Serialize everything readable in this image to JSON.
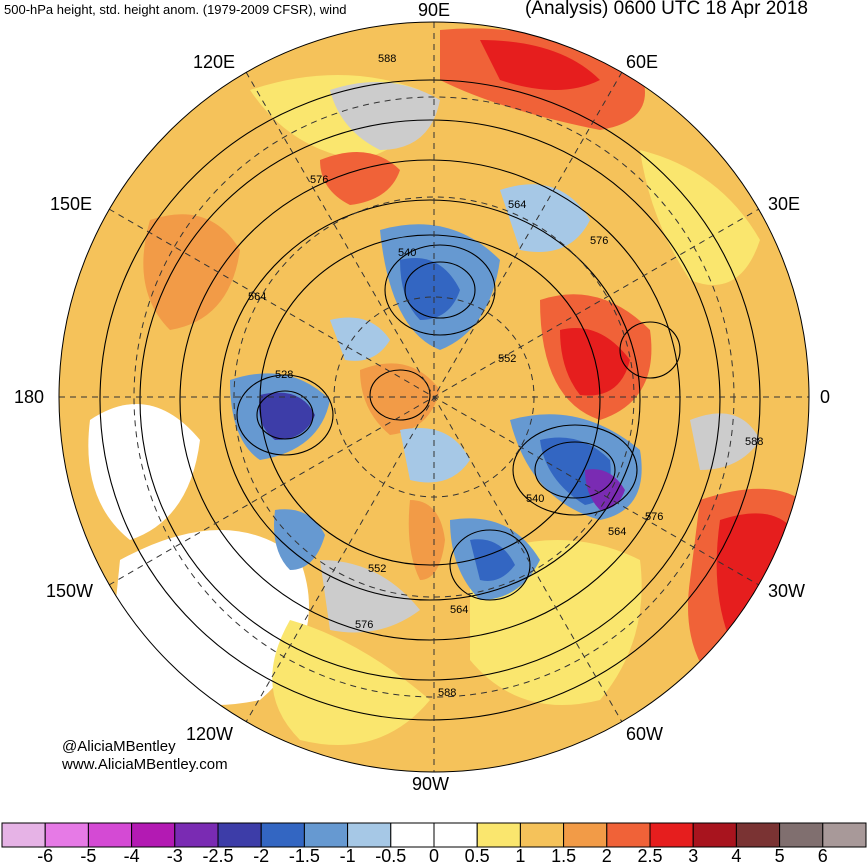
{
  "header": {
    "left_title": "500-hPa height, std. height anom. (1979-2009 CFSR), wind",
    "right_title": "(Analysis) 0600 UTC 18 Apr 2018"
  },
  "credits": {
    "twitter": "@AliciaMBentley",
    "website": "www.AliciaMBentley.com"
  },
  "longitude_labels": {
    "e90": "90E",
    "e60": "60E",
    "e30": "30E",
    "zero": "0",
    "w30": "30W",
    "w60": "60W",
    "w90": "90W",
    "w120": "120W",
    "w150": "150W",
    "d180": "180",
    "e150": "150E",
    "e120": "120E"
  },
  "contour_labels": [
    "588",
    "576",
    "564",
    "540",
    "552",
    "528",
    "540",
    "564",
    "576",
    "588",
    "552",
    "564",
    "576",
    "588",
    "564",
    "576"
  ],
  "colorbar": {
    "colors": [
      "#e6b3e6",
      "#e67ae6",
      "#d44ad4",
      "#b31ab3",
      "#7a2bb3",
      "#3d3da8",
      "#3366c2",
      "#6699d1",
      "#a6c8e6",
      "#ffffff",
      "#ffffff",
      "#fae66e",
      "#f5c25a",
      "#f29b47",
      "#f06238",
      "#e61e1e",
      "#a8141e",
      "#7a3333",
      "#806f6f",
      "#a89999"
    ],
    "ticks": [
      "-6",
      "-5",
      "-4",
      "-3",
      "-2.5",
      "-2",
      "-1.5",
      "-1",
      "-0.5",
      "0",
      "0.5",
      "1",
      "1.5",
      "2",
      "2.5",
      "3",
      "4",
      "5",
      "6"
    ]
  }
}
